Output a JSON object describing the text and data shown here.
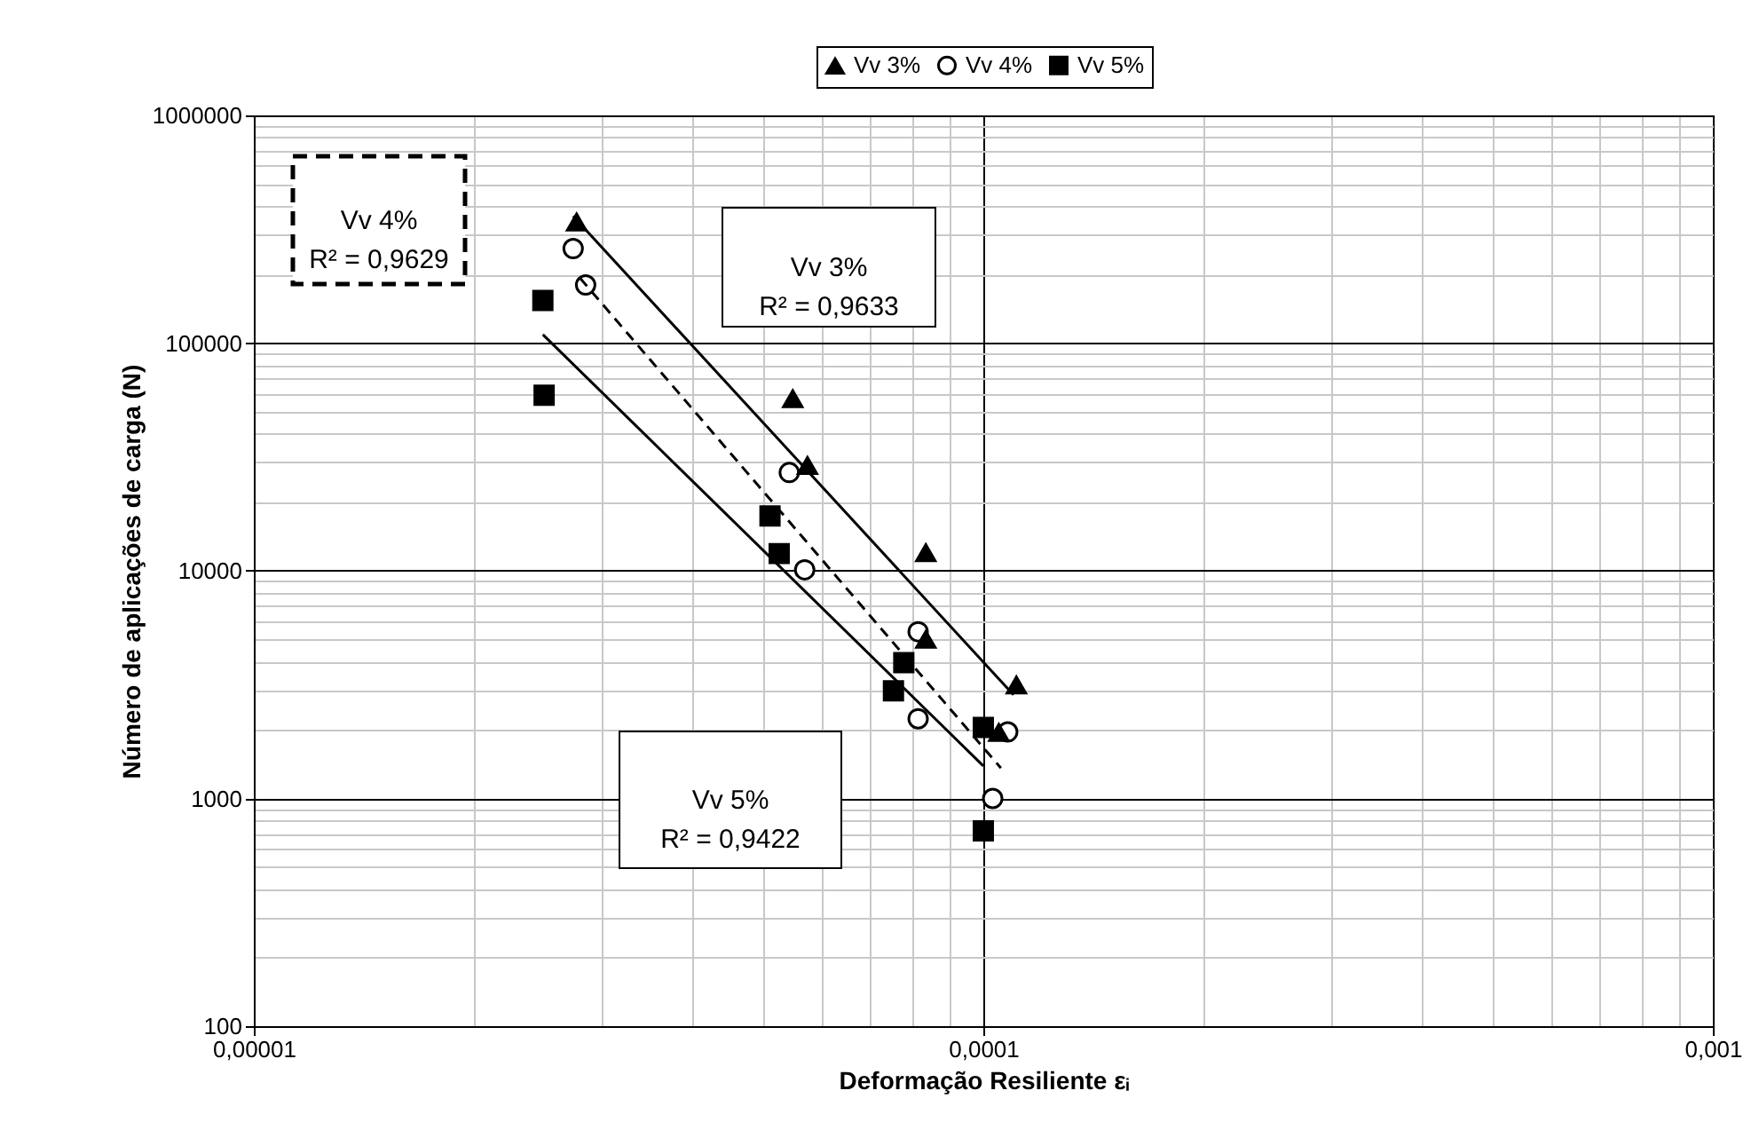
{
  "chart_data": {
    "type": "scatter",
    "xlabel": "Deformação Resiliente εᵢ",
    "ylabel": "Número de aplicações de carga (N)",
    "log": "xy",
    "grid": true,
    "legend": "top",
    "xlim": [
      1e-05,
      0.001
    ],
    "xticks": [
      {
        "value": 1e-05,
        "label": "0,00001"
      },
      {
        "value": 0.0001,
        "label": "0,0001"
      },
      {
        "value": 0.001,
        "label": "0,001"
      }
    ],
    "ylim": [
      100,
      1000000
    ],
    "yticks": [
      100,
      1000,
      10000,
      100000,
      1000000
    ],
    "annotations": [
      "Vv 3%\nR² = 0,9633",
      "Vv 4%\nR² = 0,9629",
      "Vv 5%\nR² = 0,9422"
    ],
    "series": [
      {
        "name": "Vv 3%",
        "type": "scatter",
        "marker": "triangle",
        "color": "#000000",
        "x": [
          2.77e-05,
          5.48e-05,
          5.74e-05,
          8.34e-05,
          8.34e-05,
          0.000111,
          0.000105
        ],
        "values": [
          340000,
          57000,
          29000,
          12000,
          5000,
          3150,
          1950
        ]
      },
      {
        "name": "Vv 4%",
        "type": "scatter",
        "marker": "circle",
        "color": "#000000",
        "x": [
          2.74e-05,
          2.85e-05,
          5.42e-05,
          5.69e-05,
          8.14e-05,
          8.14e-05,
          0.000108,
          0.000103
        ],
        "values": [
          260000,
          180000,
          27000,
          10100,
          5400,
          2240,
          1960,
          1000
        ]
      },
      {
        "name": "Vv 5%",
        "type": "scatter",
        "marker": "square",
        "color": "#000000",
        "x": [
          2.49e-05,
          2.5e-05,
          5.1e-05,
          5.25e-05,
          7.78e-05,
          7.53e-05,
          0.0001,
          0.0001
        ],
        "values": [
          154000,
          59000,
          17400,
          11900,
          3950,
          2970,
          2050,
          720
        ]
      },
      {
        "type": "line",
        "line_style": "solid",
        "color": "#000000",
        "x": [
          2.74e-05,
          0.00011
        ],
        "values": [
          361000,
          2850
        ]
      },
      {
        "type": "line",
        "line_style": "dashed",
        "color": "#000000",
        "x": [
          2.8e-05,
          0.0001057
        ],
        "values": [
          193000,
          1360
        ]
      },
      {
        "type": "line",
        "line_style": "solid",
        "color": "#000000",
        "x": [
          2.49e-05,
          0.0001
        ],
        "values": [
          109000,
          1390
        ]
      }
    ]
  }
}
